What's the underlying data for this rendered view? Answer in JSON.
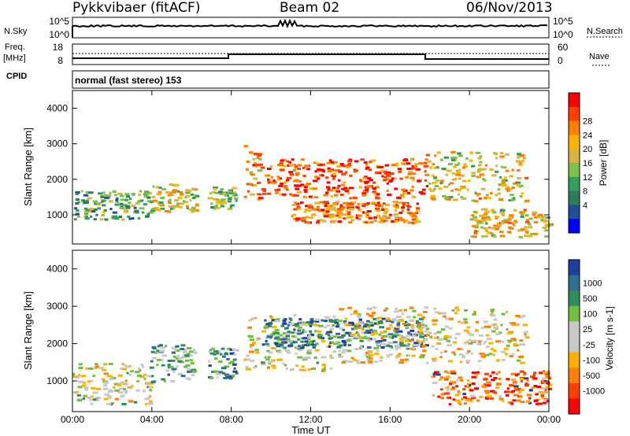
{
  "header": {
    "radar": "Pykkvibaer (fitACF)",
    "beam": "Beam 02",
    "date": "06/Nov/2013"
  },
  "status_panels": {
    "nsky_label": "N.Sky",
    "nsky_ticks": [
      "10^5",
      "10^0"
    ],
    "nsearch_label": "N.Search",
    "nsearch_ticks": [
      "10^5",
      "10^0"
    ],
    "freq_label": "Freq.",
    "freq_unit": "[MHz]",
    "freq_ticks": [
      "18",
      "8"
    ],
    "nave_label": "Nave",
    "nave_ticks": [
      "60",
      "0"
    ],
    "cpid_label": "CPID",
    "cpid_text": "normal (fast stereo) 153"
  },
  "chart_data": [
    {
      "type": "heatmap",
      "name_key": "power",
      "ylabel": "Slant Range [km]",
      "yticks": [
        "4000",
        "3000",
        "2000",
        "1000"
      ],
      "ylim": [
        180,
        4500
      ],
      "xlim": [
        0,
        24
      ],
      "colorbar": {
        "label": "Power [dB]",
        "ticks": [
          "28",
          "24",
          "20",
          "16",
          "12",
          "8",
          "4"
        ],
        "colors": [
          "#ff0000",
          "#ff4000",
          "#ff8000",
          "#ffb300",
          "#d4b640",
          "#7fc04a",
          "#32a05a",
          "#2e7d5a",
          "#1f4f96",
          "#0000ff"
        ]
      },
      "regions": [
        {
          "t0": 0.0,
          "t1": 3.9,
          "r0": 900,
          "r1": 1700,
          "v": 0.4
        },
        {
          "t0": 3.9,
          "t1": 6.2,
          "r0": 1100,
          "r1": 1900,
          "v": 0.55
        },
        {
          "t0": 6.8,
          "t1": 8.2,
          "r0": 1200,
          "r1": 1800,
          "v": 0.45
        },
        {
          "t0": 8.6,
          "t1": 9.5,
          "r0": 1400,
          "r1": 3000,
          "v": 0.7
        },
        {
          "t0": 9.5,
          "t1": 17.8,
          "r0": 1500,
          "r1": 2600,
          "v": 0.85
        },
        {
          "t0": 11.0,
          "t1": 17.5,
          "r0": 800,
          "r1": 1400,
          "v": 0.75
        },
        {
          "t0": 17.8,
          "t1": 22.8,
          "r0": 1400,
          "r1": 2800,
          "v": 0.6
        },
        {
          "t0": 20.0,
          "t1": 24.0,
          "r0": 400,
          "r1": 1200,
          "v": 0.6
        }
      ]
    },
    {
      "type": "heatmap",
      "name_key": "velocity",
      "ylabel": "Slant Range [km]",
      "yticks": [
        "4000",
        "3000",
        "2000",
        "1000"
      ],
      "ylim": [
        180,
        4500
      ],
      "xlim": [
        0,
        24
      ],
      "colorbar": {
        "label": "Velocity [m s-1]",
        "ticks": [
          "1000",
          "500",
          "100",
          "25",
          "-25",
          "-100",
          "-500",
          "-1000"
        ],
        "colors": [
          "#1f3fa0",
          "#2e6f8f",
          "#2e8f5a",
          "#6fc040",
          "#c8c8c8",
          "#c8c8c8",
          "#ffb000",
          "#ff8000",
          "#ff4000",
          "#ff0000"
        ]
      },
      "regions": [
        {
          "t0": 0.0,
          "t1": 3.9,
          "r0": 400,
          "r1": 1500,
          "v": 0.5
        },
        {
          "t0": 3.9,
          "t1": 6.2,
          "r0": 1000,
          "r1": 2000,
          "v": 0.7
        },
        {
          "t0": 6.8,
          "t1": 8.2,
          "r0": 1100,
          "r1": 1900,
          "v": 0.75
        },
        {
          "t0": 8.6,
          "t1": 13.0,
          "r0": 1300,
          "r1": 2800,
          "v": 0.5
        },
        {
          "t0": 9.5,
          "t1": 17.8,
          "r0": 1900,
          "r1": 2700,
          "v": 0.8
        },
        {
          "t0": 13.0,
          "t1": 22.8,
          "r0": 1500,
          "r1": 3000,
          "v": 0.45
        },
        {
          "t0": 18.0,
          "t1": 24.0,
          "r0": 400,
          "r1": 1300,
          "v": 0.2
        }
      ]
    }
  ],
  "xaxis": {
    "ticks": [
      "00:00",
      "04:00",
      "08:00",
      "12:00",
      "16:00",
      "20:00",
      "00:00"
    ],
    "label": "Time UT"
  }
}
